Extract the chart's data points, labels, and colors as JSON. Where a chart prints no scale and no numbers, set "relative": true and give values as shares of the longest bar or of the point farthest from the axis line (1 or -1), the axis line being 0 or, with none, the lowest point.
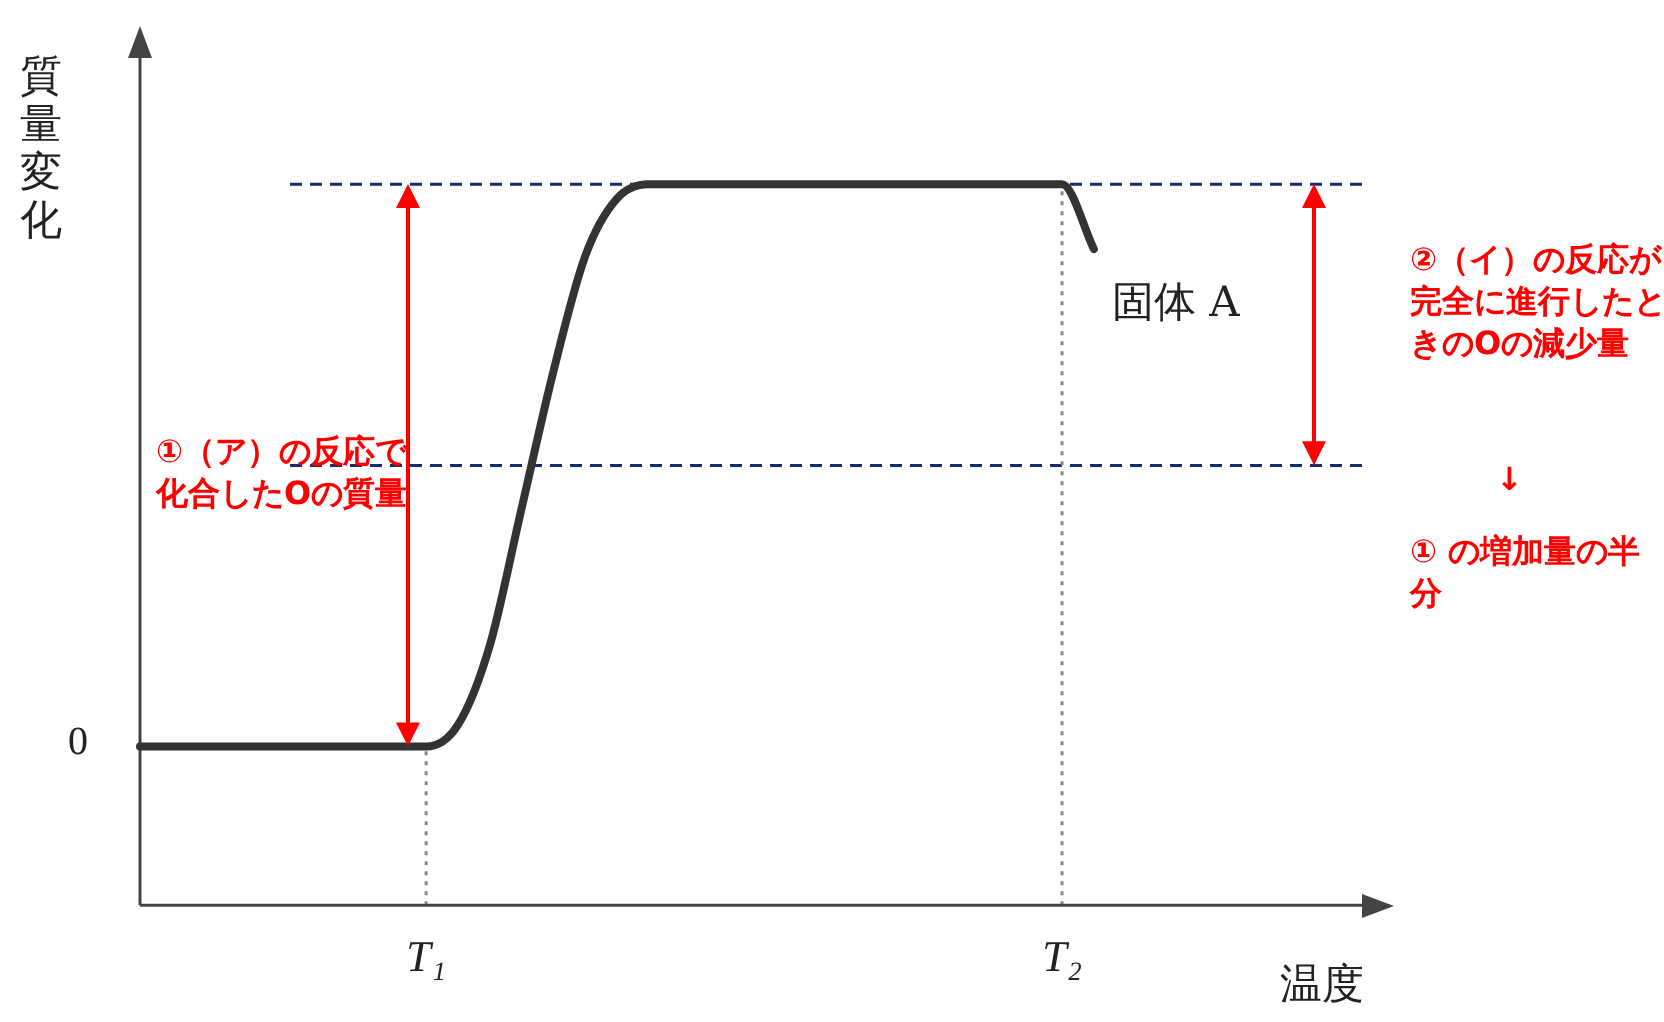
{
  "chart_data": {
    "type": "line",
    "relative": true,
    "ylabel": "質量変化",
    "xlabel": "温度",
    "categories": [
      null,
      null,
      null,
      null,
      null,
      null,
      null,
      null,
      null,
      "T₁",
      null,
      null,
      null,
      null,
      null,
      null,
      null,
      null,
      null,
      null,
      null,
      null,
      null,
      null,
      null,
      null,
      null,
      null,
      null,
      "T₂",
      null,
      null,
      null,
      null,
      null,
      null,
      null,
      null,
      null,
      null
    ],
    "series": [
      {
        "color": "#333333",
        "values": [
          0.22,
          0.22,
          0.22,
          0.22,
          0.22,
          0.22,
          0.22,
          0.22,
          0.22,
          0.22,
          0.25,
          0.36,
          0.55,
          0.74,
          0.9,
          0.98,
          1,
          1,
          1,
          1,
          1,
          1,
          1,
          1,
          1,
          1,
          1,
          1,
          1,
          1,
          0.91,
          null,
          null,
          null,
          null,
          null,
          null,
          null,
          null,
          null
        ]
      }
    ],
    "ref_lines": [
      {
        "axis": "y",
        "value": 1,
        "color": "#1a2a6c",
        "line_style": "dashed"
      },
      {
        "axis": "y",
        "value": 0.61,
        "color": "#1a2a6c",
        "line_style": "dashed"
      },
      {
        "axis": "x",
        "value": "T₁",
        "color": "#888888",
        "line_style": "dotted"
      },
      {
        "axis": "x",
        "value": "T₂",
        "color": "#888888",
        "line_style": "dotted"
      }
    ],
    "annotations": [
      "0",
      "①（ア）の反応で化合したOの質量",
      "②（イ）の反応が完全に進行したときのOの減少量",
      "↓",
      "① の増加量の半分",
      "固体 A"
    ],
    "grid": false,
    "legend": false,
    "marker": "none",
    "line_style": "solid"
  }
}
